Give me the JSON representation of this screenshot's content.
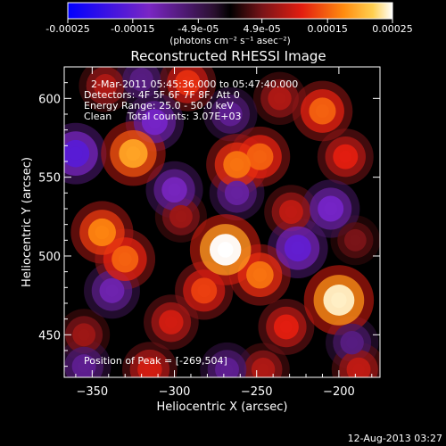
{
  "colorbar": {
    "ticks": [
      {
        "value": -0.00025,
        "label": "-0.00025"
      },
      {
        "value": -0.00015,
        "label": "-0.00015"
      },
      {
        "value": -4.9e-05,
        "label": "-4.9e-05"
      },
      {
        "value": 4.9e-05,
        "label": "4.9e-05"
      },
      {
        "value": 0.00015,
        "label": "0.00015"
      },
      {
        "value": 0.00025,
        "label": "0.00025"
      }
    ],
    "range": [
      -0.00025,
      0.00025
    ],
    "units": "(photons cm⁻² s⁻¹ asec⁻²)"
  },
  "chart_data": {
    "type": "heatmap",
    "title": "Reconstructed RHESSI Image",
    "xlabel": "Heliocentric X (arcsec)",
    "ylabel": "Heliocentric Y (arcsec)",
    "xlim": [
      -367,
      -175
    ],
    "ylim": [
      423,
      620
    ],
    "xticks": [
      {
        "value": -350,
        "label": "−350"
      },
      {
        "value": -300,
        "label": "−300"
      },
      {
        "value": -250,
        "label": "−250"
      },
      {
        "value": -200,
        "label": "−200"
      }
    ],
    "yticks": [
      {
        "value": 450,
        "label": "450"
      },
      {
        "value": 500,
        "label": "500"
      },
      {
        "value": 550,
        "label": "550"
      },
      {
        "value": 600,
        "label": "600"
      }
    ],
    "annotations": [
      "2-Mar-2011 05:45:36.000 to 05:47:40.000",
      "Detectors: 4F 5F 6F 7F 8F, Att 0",
      "Energy Range: 25.0 - 50.0 keV",
      "Clean     Total counts: 3.07E+03"
    ],
    "peak_label": "Position of Peak = [-269,504]",
    "peak": [
      -269,
      504
    ],
    "sources": [
      {
        "x": -269,
        "y": 504,
        "value": 0.00025
      },
      {
        "x": -200,
        "y": 472,
        "value": 0.00024
      },
      {
        "x": -248,
        "y": 488,
        "value": 0.00016
      },
      {
        "x": -325,
        "y": 565,
        "value": 0.00019
      },
      {
        "x": -344,
        "y": 515,
        "value": 0.00017
      },
      {
        "x": -330,
        "y": 498,
        "value": 0.00015
      },
      {
        "x": -262,
        "y": 558,
        "value": 0.00016
      },
      {
        "x": -248,
        "y": 563,
        "value": 0.00015
      },
      {
        "x": -210,
        "y": 592,
        "value": 0.00015
      },
      {
        "x": -196,
        "y": 563,
        "value": 0.00011
      },
      {
        "x": -292,
        "y": 610,
        "value": 0.00012
      },
      {
        "x": -282,
        "y": 478,
        "value": 0.00013
      },
      {
        "x": -302,
        "y": 458,
        "value": 0.0001
      },
      {
        "x": -315,
        "y": 428,
        "value": 0.0001
      },
      {
        "x": -232,
        "y": 455,
        "value": 0.00011
      },
      {
        "x": -246,
        "y": 428,
        "value": 8e-05
      },
      {
        "x": -355,
        "y": 450,
        "value": 7e-05
      },
      {
        "x": -342,
        "y": 608,
        "value": 8e-05
      },
      {
        "x": -229,
        "y": 528,
        "value": 9e-05
      },
      {
        "x": -188,
        "y": 428,
        "value": 9e-05
      },
      {
        "x": -236,
        "y": 600,
        "value": 8e-05
      },
      {
        "x": -296,
        "y": 525,
        "value": 7e-05
      },
      {
        "x": -190,
        "y": 510,
        "value": 5e-05
      },
      {
        "x": -360,
        "y": 565,
        "value": -0.00016
      },
      {
        "x": -312,
        "y": 585,
        "value": -0.00013
      },
      {
        "x": -300,
        "y": 542,
        "value": -0.00012
      },
      {
        "x": -225,
        "y": 505,
        "value": -0.00015
      },
      {
        "x": -205,
        "y": 530,
        "value": -0.00013
      },
      {
        "x": -262,
        "y": 540,
        "value": -0.0001
      },
      {
        "x": -338,
        "y": 478,
        "value": -0.00011
      },
      {
        "x": -268,
        "y": 428,
        "value": -9e-05
      },
      {
        "x": -192,
        "y": 445,
        "value": -8e-05
      },
      {
        "x": -355,
        "y": 430,
        "value": -9e-05
      },
      {
        "x": -266,
        "y": 590,
        "value": -9e-05
      },
      {
        "x": -320,
        "y": 612,
        "value": -8e-05
      }
    ]
  },
  "footer": {
    "timestamp": "12-Aug-2013 03:27"
  }
}
